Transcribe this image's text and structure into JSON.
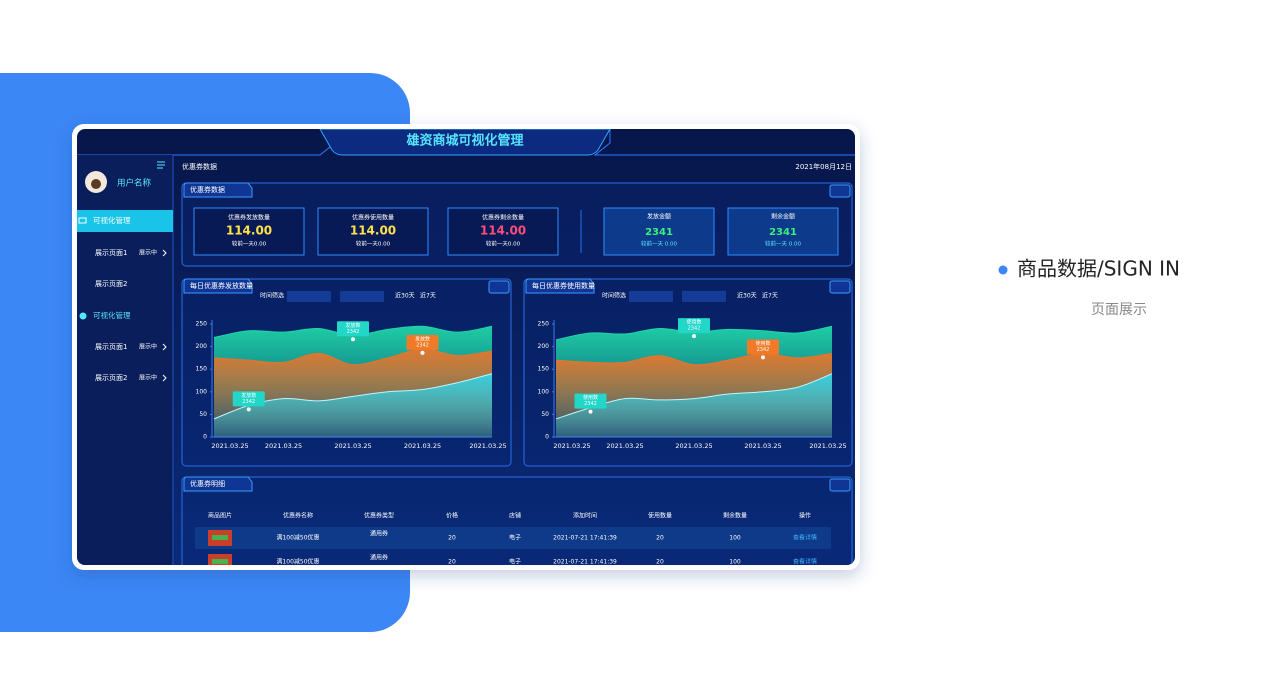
{
  "header": {
    "title": "雄资商城可视化管理"
  },
  "sidebar": {
    "user": "用户名称",
    "menu": [
      {
        "label": "可视化管理",
        "items": [
          {
            "label": "展示页面1",
            "status": "展示中"
          },
          {
            "label": "展示页面2"
          }
        ]
      },
      {
        "label": "可视化管理",
        "items": [
          {
            "label": "展示页面1",
            "status": "展示中"
          },
          {
            "label": "展示页面2",
            "status": "展示中"
          }
        ]
      }
    ]
  },
  "toolbar": {
    "title": "优惠券数据",
    "date": "2021年08月12日"
  },
  "summary": {
    "title": "优惠券数据",
    "cards": [
      {
        "label": "优惠券发放数量",
        "value": "114.00",
        "note": "较前一天0.00"
      },
      {
        "label": "优惠券使用数量",
        "value": "114.00",
        "note": "较前一天0.00"
      },
      {
        "label": "优惠券剩余数量",
        "value": "114.00",
        "note": "较前一天0.00"
      },
      {
        "label": "发放金额",
        "value": "2341",
        "note": "较前一天 0.00"
      },
      {
        "label": "剩余金额",
        "value": "2341",
        "note": "较前一天 0.00"
      }
    ]
  },
  "charts": [
    {
      "type": "area",
      "title": "每日优惠券发放数量",
      "filter_label": "时间筛选",
      "ranges": [
        "近30天",
        "近7天"
      ],
      "categories": [
        "2021.03.25",
        null,
        "2021.03.25",
        null,
        "2021.03.25",
        null,
        "2021.03.25",
        null,
        "2021.03.25"
      ],
      "ylim": [
        0,
        250
      ],
      "yticks": [
        0,
        50,
        100,
        150,
        200,
        250
      ],
      "series": [
        {
          "color": "#1fd6a8",
          "values": [
            220,
            235,
            232,
            240,
            225,
            238,
            245,
            232,
            245
          ]
        },
        {
          "color": "#e8742a",
          "values": [
            175,
            170,
            165,
            185,
            160,
            175,
            195,
            180,
            190
          ]
        },
        {
          "color": "#2fd3e8",
          "values": [
            40,
            70,
            85,
            80,
            90,
            100,
            105,
            120,
            140
          ]
        }
      ],
      "tooltips": [
        {
          "label": "发放数",
          "value": 2342
        },
        {
          "label": "发放数",
          "value": 2342
        },
        {
          "label": "发放数",
          "value": 2342
        }
      ]
    },
    {
      "type": "area",
      "title": "每日优惠券使用数量",
      "filter_label": "时间筛选",
      "ranges": [
        "近30天",
        "近7天"
      ],
      "categories": [
        "2021.03.25",
        null,
        "2021.03.25",
        null,
        "2021.03.25",
        null,
        "2021.03.25",
        null,
        "2021.03.25"
      ],
      "ylim": [
        0,
        250
      ],
      "yticks": [
        0,
        50,
        100,
        150,
        200,
        250
      ],
      "series": [
        {
          "color": "#1fd6a8",
          "values": [
            215,
            230,
            228,
            240,
            232,
            238,
            235,
            230,
            245
          ]
        },
        {
          "color": "#e8742a",
          "values": [
            170,
            165,
            165,
            180,
            160,
            170,
            185,
            175,
            185
          ]
        },
        {
          "color": "#2fd3e8",
          "values": [
            40,
            65,
            85,
            82,
            85,
            95,
            100,
            110,
            140
          ]
        }
      ],
      "tooltips": [
        {
          "label": "使用数",
          "value": 2342
        },
        {
          "label": "使用数",
          "value": 2342
        },
        {
          "label": "使用数",
          "value": 2342
        }
      ]
    }
  ],
  "table": {
    "title": "优惠券明细",
    "columns": [
      "商品图片",
      "优惠券名称",
      "优惠券类型",
      "价格",
      "店铺",
      "添加时间",
      "使用数量",
      "剩余数量",
      "操作"
    ],
    "rows": [
      [
        "满100减50优惠",
        "通用券",
        "20",
        "电子",
        "2021-07-21  17:41:39",
        "20",
        "100",
        "查看详情"
      ],
      [
        "满100减50优惠",
        "通用券",
        "20",
        "电子",
        "2021-07-21  17:41:39",
        "20",
        "100",
        "查看详情"
      ]
    ]
  },
  "showcase": {
    "title": "商品数据/SIGN IN",
    "subtitle": "页面展示"
  }
}
